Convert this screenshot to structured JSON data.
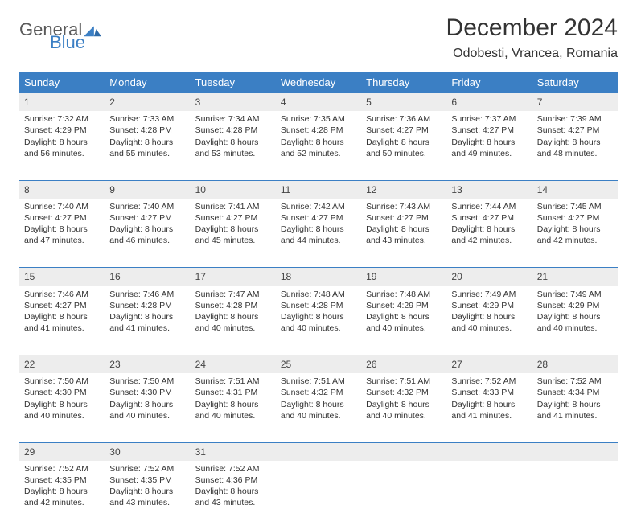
{
  "logo": {
    "word1": "General",
    "word2": "Blue",
    "color1": "#5a5a5a",
    "color2": "#3b7fc4"
  },
  "title": "December 2024",
  "location": "Odobesti, Vrancea, Romania",
  "styling": {
    "header_bg": "#3b7fc4",
    "header_fg": "#ffffff",
    "daynum_bg": "#ededed",
    "border_color": "#3b7fc4",
    "page_bg": "#ffffff",
    "title_fontsize": 30,
    "location_fontsize": 16,
    "th_fontsize": 13,
    "cell_fontsize": 10.5
  },
  "weekdays": [
    "Sunday",
    "Monday",
    "Tuesday",
    "Wednesday",
    "Thursday",
    "Friday",
    "Saturday"
  ],
  "weeks": [
    [
      {
        "n": "1",
        "sunrise": "Sunrise: 7:32 AM",
        "sunset": "Sunset: 4:29 PM",
        "day": "Daylight: 8 hours and 56 minutes."
      },
      {
        "n": "2",
        "sunrise": "Sunrise: 7:33 AM",
        "sunset": "Sunset: 4:28 PM",
        "day": "Daylight: 8 hours and 55 minutes."
      },
      {
        "n": "3",
        "sunrise": "Sunrise: 7:34 AM",
        "sunset": "Sunset: 4:28 PM",
        "day": "Daylight: 8 hours and 53 minutes."
      },
      {
        "n": "4",
        "sunrise": "Sunrise: 7:35 AM",
        "sunset": "Sunset: 4:28 PM",
        "day": "Daylight: 8 hours and 52 minutes."
      },
      {
        "n": "5",
        "sunrise": "Sunrise: 7:36 AM",
        "sunset": "Sunset: 4:27 PM",
        "day": "Daylight: 8 hours and 50 minutes."
      },
      {
        "n": "6",
        "sunrise": "Sunrise: 7:37 AM",
        "sunset": "Sunset: 4:27 PM",
        "day": "Daylight: 8 hours and 49 minutes."
      },
      {
        "n": "7",
        "sunrise": "Sunrise: 7:39 AM",
        "sunset": "Sunset: 4:27 PM",
        "day": "Daylight: 8 hours and 48 minutes."
      }
    ],
    [
      {
        "n": "8",
        "sunrise": "Sunrise: 7:40 AM",
        "sunset": "Sunset: 4:27 PM",
        "day": "Daylight: 8 hours and 47 minutes."
      },
      {
        "n": "9",
        "sunrise": "Sunrise: 7:40 AM",
        "sunset": "Sunset: 4:27 PM",
        "day": "Daylight: 8 hours and 46 minutes."
      },
      {
        "n": "10",
        "sunrise": "Sunrise: 7:41 AM",
        "sunset": "Sunset: 4:27 PM",
        "day": "Daylight: 8 hours and 45 minutes."
      },
      {
        "n": "11",
        "sunrise": "Sunrise: 7:42 AM",
        "sunset": "Sunset: 4:27 PM",
        "day": "Daylight: 8 hours and 44 minutes."
      },
      {
        "n": "12",
        "sunrise": "Sunrise: 7:43 AM",
        "sunset": "Sunset: 4:27 PM",
        "day": "Daylight: 8 hours and 43 minutes."
      },
      {
        "n": "13",
        "sunrise": "Sunrise: 7:44 AM",
        "sunset": "Sunset: 4:27 PM",
        "day": "Daylight: 8 hours and 42 minutes."
      },
      {
        "n": "14",
        "sunrise": "Sunrise: 7:45 AM",
        "sunset": "Sunset: 4:27 PM",
        "day": "Daylight: 8 hours and 42 minutes."
      }
    ],
    [
      {
        "n": "15",
        "sunrise": "Sunrise: 7:46 AM",
        "sunset": "Sunset: 4:27 PM",
        "day": "Daylight: 8 hours and 41 minutes."
      },
      {
        "n": "16",
        "sunrise": "Sunrise: 7:46 AM",
        "sunset": "Sunset: 4:28 PM",
        "day": "Daylight: 8 hours and 41 minutes."
      },
      {
        "n": "17",
        "sunrise": "Sunrise: 7:47 AM",
        "sunset": "Sunset: 4:28 PM",
        "day": "Daylight: 8 hours and 40 minutes."
      },
      {
        "n": "18",
        "sunrise": "Sunrise: 7:48 AM",
        "sunset": "Sunset: 4:28 PM",
        "day": "Daylight: 8 hours and 40 minutes."
      },
      {
        "n": "19",
        "sunrise": "Sunrise: 7:48 AM",
        "sunset": "Sunset: 4:29 PM",
        "day": "Daylight: 8 hours and 40 minutes."
      },
      {
        "n": "20",
        "sunrise": "Sunrise: 7:49 AM",
        "sunset": "Sunset: 4:29 PM",
        "day": "Daylight: 8 hours and 40 minutes."
      },
      {
        "n": "21",
        "sunrise": "Sunrise: 7:49 AM",
        "sunset": "Sunset: 4:29 PM",
        "day": "Daylight: 8 hours and 40 minutes."
      }
    ],
    [
      {
        "n": "22",
        "sunrise": "Sunrise: 7:50 AM",
        "sunset": "Sunset: 4:30 PM",
        "day": "Daylight: 8 hours and 40 minutes."
      },
      {
        "n": "23",
        "sunrise": "Sunrise: 7:50 AM",
        "sunset": "Sunset: 4:30 PM",
        "day": "Daylight: 8 hours and 40 minutes."
      },
      {
        "n": "24",
        "sunrise": "Sunrise: 7:51 AM",
        "sunset": "Sunset: 4:31 PM",
        "day": "Daylight: 8 hours and 40 minutes."
      },
      {
        "n": "25",
        "sunrise": "Sunrise: 7:51 AM",
        "sunset": "Sunset: 4:32 PM",
        "day": "Daylight: 8 hours and 40 minutes."
      },
      {
        "n": "26",
        "sunrise": "Sunrise: 7:51 AM",
        "sunset": "Sunset: 4:32 PM",
        "day": "Daylight: 8 hours and 40 minutes."
      },
      {
        "n": "27",
        "sunrise": "Sunrise: 7:52 AM",
        "sunset": "Sunset: 4:33 PM",
        "day": "Daylight: 8 hours and 41 minutes."
      },
      {
        "n": "28",
        "sunrise": "Sunrise: 7:52 AM",
        "sunset": "Sunset: 4:34 PM",
        "day": "Daylight: 8 hours and 41 minutes."
      }
    ],
    [
      {
        "n": "29",
        "sunrise": "Sunrise: 7:52 AM",
        "sunset": "Sunset: 4:35 PM",
        "day": "Daylight: 8 hours and 42 minutes."
      },
      {
        "n": "30",
        "sunrise": "Sunrise: 7:52 AM",
        "sunset": "Sunset: 4:35 PM",
        "day": "Daylight: 8 hours and 43 minutes."
      },
      {
        "n": "31",
        "sunrise": "Sunrise: 7:52 AM",
        "sunset": "Sunset: 4:36 PM",
        "day": "Daylight: 8 hours and 43 minutes."
      },
      null,
      null,
      null,
      null
    ]
  ]
}
